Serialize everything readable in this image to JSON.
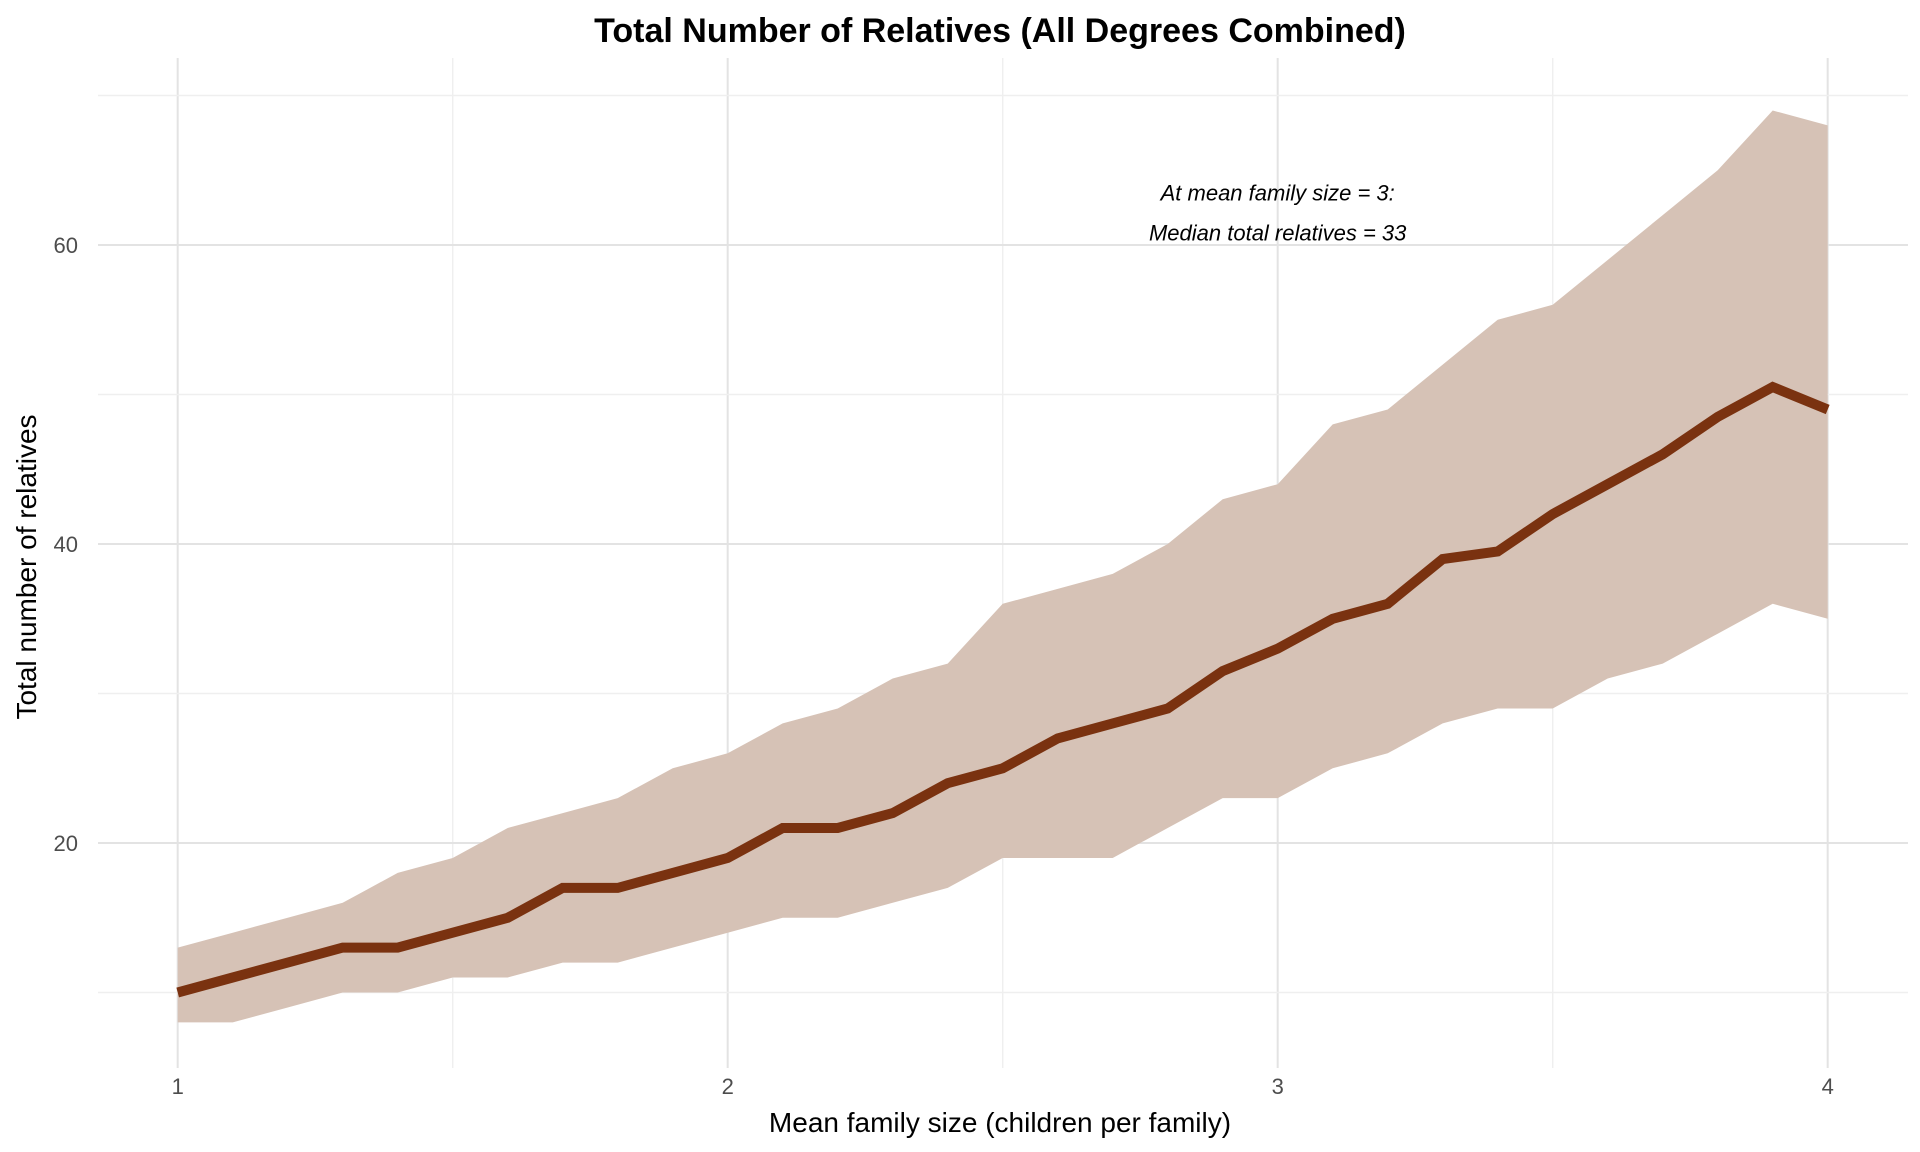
{
  "chart_data": {
    "type": "line",
    "title": "Total Number of Relatives (All Degrees Combined)",
    "xlabel": "Mean family size (children per family)",
    "ylabel": "Total number of relatives",
    "xlim": [
      0.85,
      4.15
    ],
    "ylim": [
      6,
      70
    ],
    "x_ticks": [
      1,
      2,
      3,
      4
    ],
    "y_ticks": [
      20,
      40,
      60
    ],
    "grid": true,
    "x": [
      1.0,
      1.1,
      1.2,
      1.3,
      1.4,
      1.5,
      1.6,
      1.7,
      1.8,
      1.9,
      2.0,
      2.1,
      2.2,
      2.3,
      2.4,
      2.5,
      2.6,
      2.7,
      2.8,
      2.9,
      3.0,
      3.1,
      3.2,
      3.3,
      3.4,
      3.5,
      3.6,
      3.7,
      3.8,
      3.9,
      4.0
    ],
    "series": [
      {
        "type": "line",
        "color": "#7a3210",
        "values": [
          10,
          11,
          12,
          13,
          13,
          14,
          15,
          17,
          17,
          18,
          19,
          21,
          21,
          22,
          24,
          25,
          27,
          28,
          29,
          31.5,
          33,
          35,
          36,
          39,
          39.5,
          42,
          44,
          46,
          48.5,
          50.5,
          49
        ]
      },
      {
        "type": "band",
        "color": "#d6c2b6",
        "lower": [
          8,
          8,
          9,
          10,
          10,
          11,
          11,
          12,
          12,
          13,
          14,
          15,
          15,
          16,
          17,
          19,
          19,
          19,
          21,
          23,
          23,
          25,
          26,
          28,
          29,
          29,
          31,
          32,
          34,
          36,
          35
        ],
        "upper": [
          13,
          14,
          15,
          16,
          18,
          19,
          21,
          22,
          23,
          25,
          26,
          28,
          29,
          31,
          32,
          36,
          37,
          38,
          40,
          43,
          44,
          48,
          49,
          52,
          55,
          56,
          59,
          62,
          65,
          69,
          68
        ]
      }
    ],
    "annotation": {
      "lines": [
        "At mean family size = 3:",
        "Median total relatives = 33"
      ],
      "x": 3.0,
      "y": 61.5
    }
  }
}
